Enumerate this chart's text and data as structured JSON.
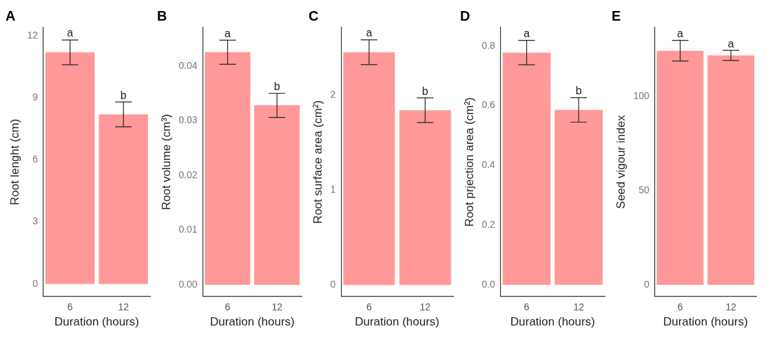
{
  "chart_data": [
    {
      "type": "bar",
      "title": "A",
      "xlabel": "Duration (hours)",
      "ylabel": "Root lenght (cm)",
      "categories": [
        "6",
        "12"
      ],
      "values": [
        11.2,
        8.2
      ],
      "errors": [
        0.6,
        0.6
      ],
      "color": "#ff9999",
      "ylim": [
        -0.6,
        12.4
      ],
      "yticks": [
        0,
        3,
        6,
        9,
        12
      ],
      "grid": false,
      "annotations": [
        {
          "text": "a",
          "x": "6",
          "y": 11.8
        },
        {
          "text": "b",
          "x": "12",
          "y": 8.8
        }
      ]
    },
    {
      "type": "bar",
      "title": "B",
      "xlabel": "Duration (hours)",
      "ylabel": "Root volume (cm³)",
      "categories": [
        "6",
        "12"
      ],
      "values": [
        0.0425,
        0.0328
      ],
      "errors": [
        0.0022,
        0.0022
      ],
      "color": "#ff9999",
      "ylim": [
        -0.0021,
        0.047
      ],
      "yticks": [
        {
          "value": 0,
          "label": "0.00"
        },
        0.01,
        0.02,
        0.03,
        0.04
      ],
      "grid": false,
      "annotations": [
        {
          "text": "a",
          "x": "6",
          "y": 0.0447
        },
        {
          "text": "b",
          "x": "12",
          "y": 0.035
        }
      ]
    },
    {
      "type": "bar",
      "title": "C",
      "xlabel": "Duration (hours)",
      "ylabel": "Root surface area (cm²)",
      "categories": [
        "6",
        "12"
      ],
      "values": [
        2.45,
        1.84
      ],
      "errors": [
        0.13,
        0.13
      ],
      "color": "#ff9999",
      "ylim": [
        -0.12,
        2.71
      ],
      "yticks": [
        0,
        1,
        2
      ],
      "grid": false,
      "annotations": [
        {
          "text": "a",
          "x": "6",
          "y": 2.58
        },
        {
          "text": "b",
          "x": "12",
          "y": 1.97
        }
      ]
    },
    {
      "type": "bar",
      "title": "D",
      "xlabel": "Duration (hours)",
      "ylabel": "Root prjection area (cm²)",
      "categories": [
        "6",
        "12"
      ],
      "values": [
        0.778,
        0.586
      ],
      "errors": [
        0.041,
        0.041
      ],
      "color": "#ff9999",
      "ylim": [
        -0.039,
        0.862
      ],
      "yticks": [
        {
          "value": 0,
          "label": "0.0"
        },
        0.2,
        0.4,
        0.6,
        0.8
      ],
      "grid": false,
      "annotations": [
        {
          "text": "a",
          "x": "6",
          "y": 0.819
        },
        {
          "text": "b",
          "x": "12",
          "y": 0.627
        }
      ]
    },
    {
      "type": "bar",
      "title": "E",
      "xlabel": "Duration (hours)",
      "ylabel": "Seed vigour index",
      "categories": [
        "6",
        "12"
      ],
      "values": [
        124.4,
        121.9
      ],
      "errors": [
        5.5,
        2.7
      ],
      "color": "#ff9999",
      "ylim": [
        -6.1,
        136.7
      ],
      "yticks": [
        0,
        50,
        100
      ],
      "grid": false,
      "annotations": [
        {
          "text": "a",
          "x": "6",
          "y": 129.9
        },
        {
          "text": "a",
          "x": "12",
          "y": 124.6
        }
      ]
    }
  ]
}
